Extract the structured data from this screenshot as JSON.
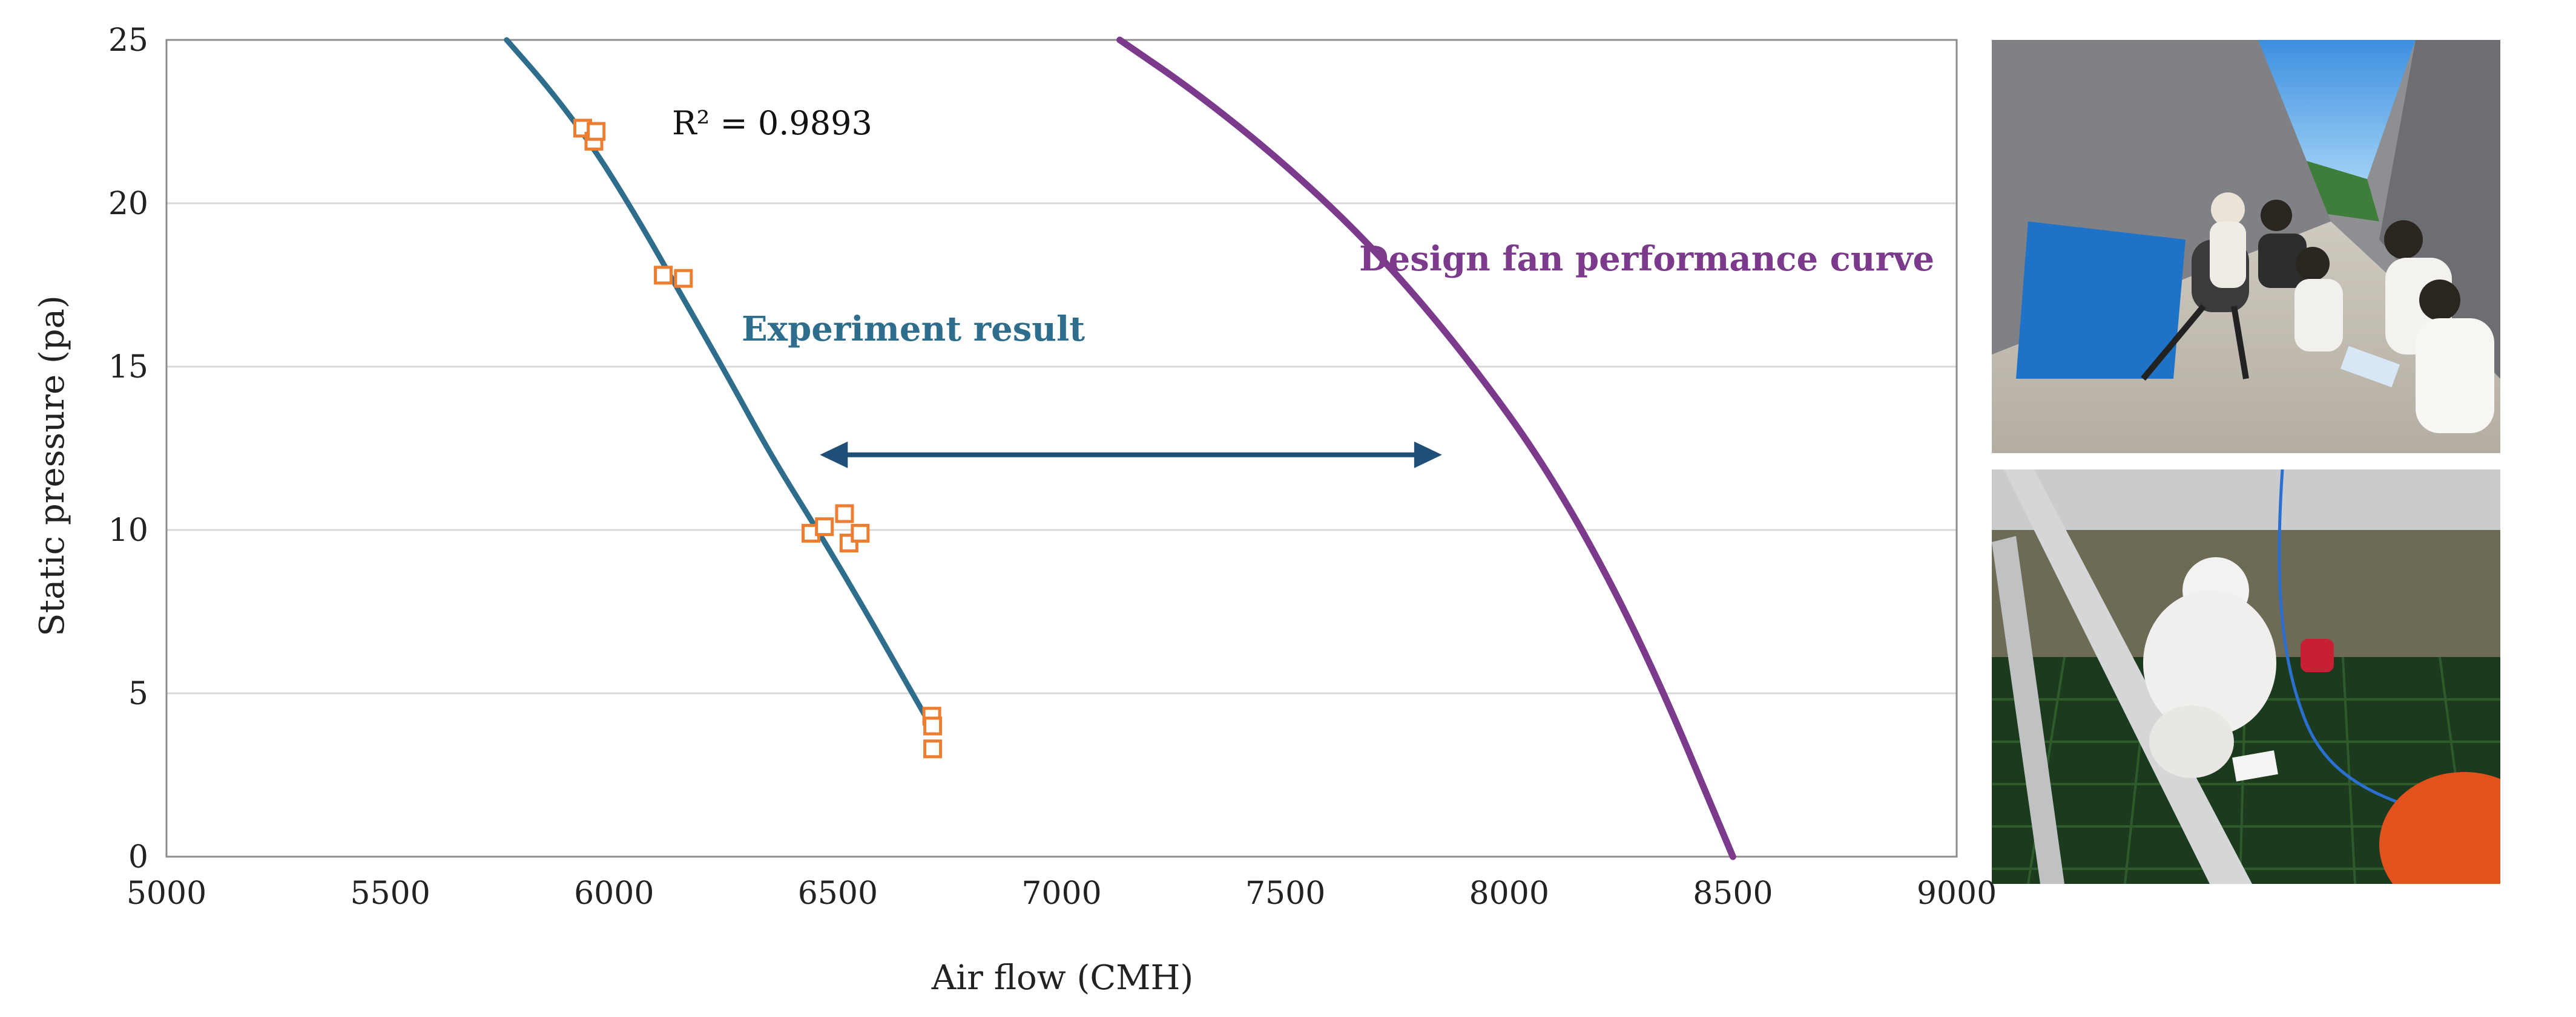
{
  "chart_data": {
    "type": "scatter",
    "title": "",
    "xlabel": "Air flow (CMH)",
    "ylabel": "Static pressure (pa)",
    "xlim": [
      5000,
      9000
    ],
    "ylim": [
      0,
      25
    ],
    "xticks": [
      5000,
      5500,
      6000,
      6500,
      7000,
      7500,
      8000,
      8500,
      9000
    ],
    "yticks": [
      0,
      5,
      10,
      15,
      20,
      25
    ],
    "grid": "horizontal",
    "series": [
      {
        "name": "Measured points",
        "kind": "scatter",
        "marker": "square",
        "color": "#ED7D31",
        "points": [
          [
            5930,
            22.3
          ],
          [
            5955,
            21.9
          ],
          [
            5960,
            22.2
          ],
          [
            6110,
            17.8
          ],
          [
            6155,
            17.7
          ],
          [
            6440,
            9.9
          ],
          [
            6470,
            10.1
          ],
          [
            6515,
            10.5
          ],
          [
            6525,
            9.6
          ],
          [
            6550,
            9.9
          ],
          [
            6710,
            4.3
          ],
          [
            6712,
            4.0
          ],
          [
            6712,
            3.3
          ]
        ]
      },
      {
        "name": "Experiment result",
        "kind": "trendline",
        "color": "#2E6E8C",
        "x": [
          5760,
          5850,
          5950,
          6050,
          6150,
          6250,
          6350,
          6450,
          6550,
          6650,
          6700
        ],
        "y": [
          25.0,
          23.6,
          21.8,
          19.6,
          17.2,
          14.8,
          12.3,
          10.1,
          7.8,
          5.4,
          4.2
        ]
      },
      {
        "name": "Design fan performance curve",
        "kind": "line",
        "color": "#7B3A8C",
        "x": [
          7130,
          7300,
          7500,
          7700,
          7900,
          8100,
          8300,
          8500
        ],
        "y": [
          25.0,
          23.4,
          21.2,
          18.6,
          15.4,
          11.6,
          6.5,
          0.0
        ]
      }
    ],
    "annotations": {
      "r_squared": "R² = 0.9893",
      "experiment_label": "Experiment result",
      "design_label": "Design fan performance curve",
      "arrow": {
        "from": [
          6460,
          12.3
        ],
        "to": [
          7850,
          12.3
        ]
      }
    }
  },
  "colors": {
    "measured": "#ED7D31",
    "trend": "#2E6E8C",
    "design": "#7B3A8C",
    "arrow": "#1F4E79",
    "grid": "#D9D9D9"
  },
  "photos": {
    "top": "outdoor-fan-test-photo",
    "bottom": "indoor-measurement-photo"
  }
}
